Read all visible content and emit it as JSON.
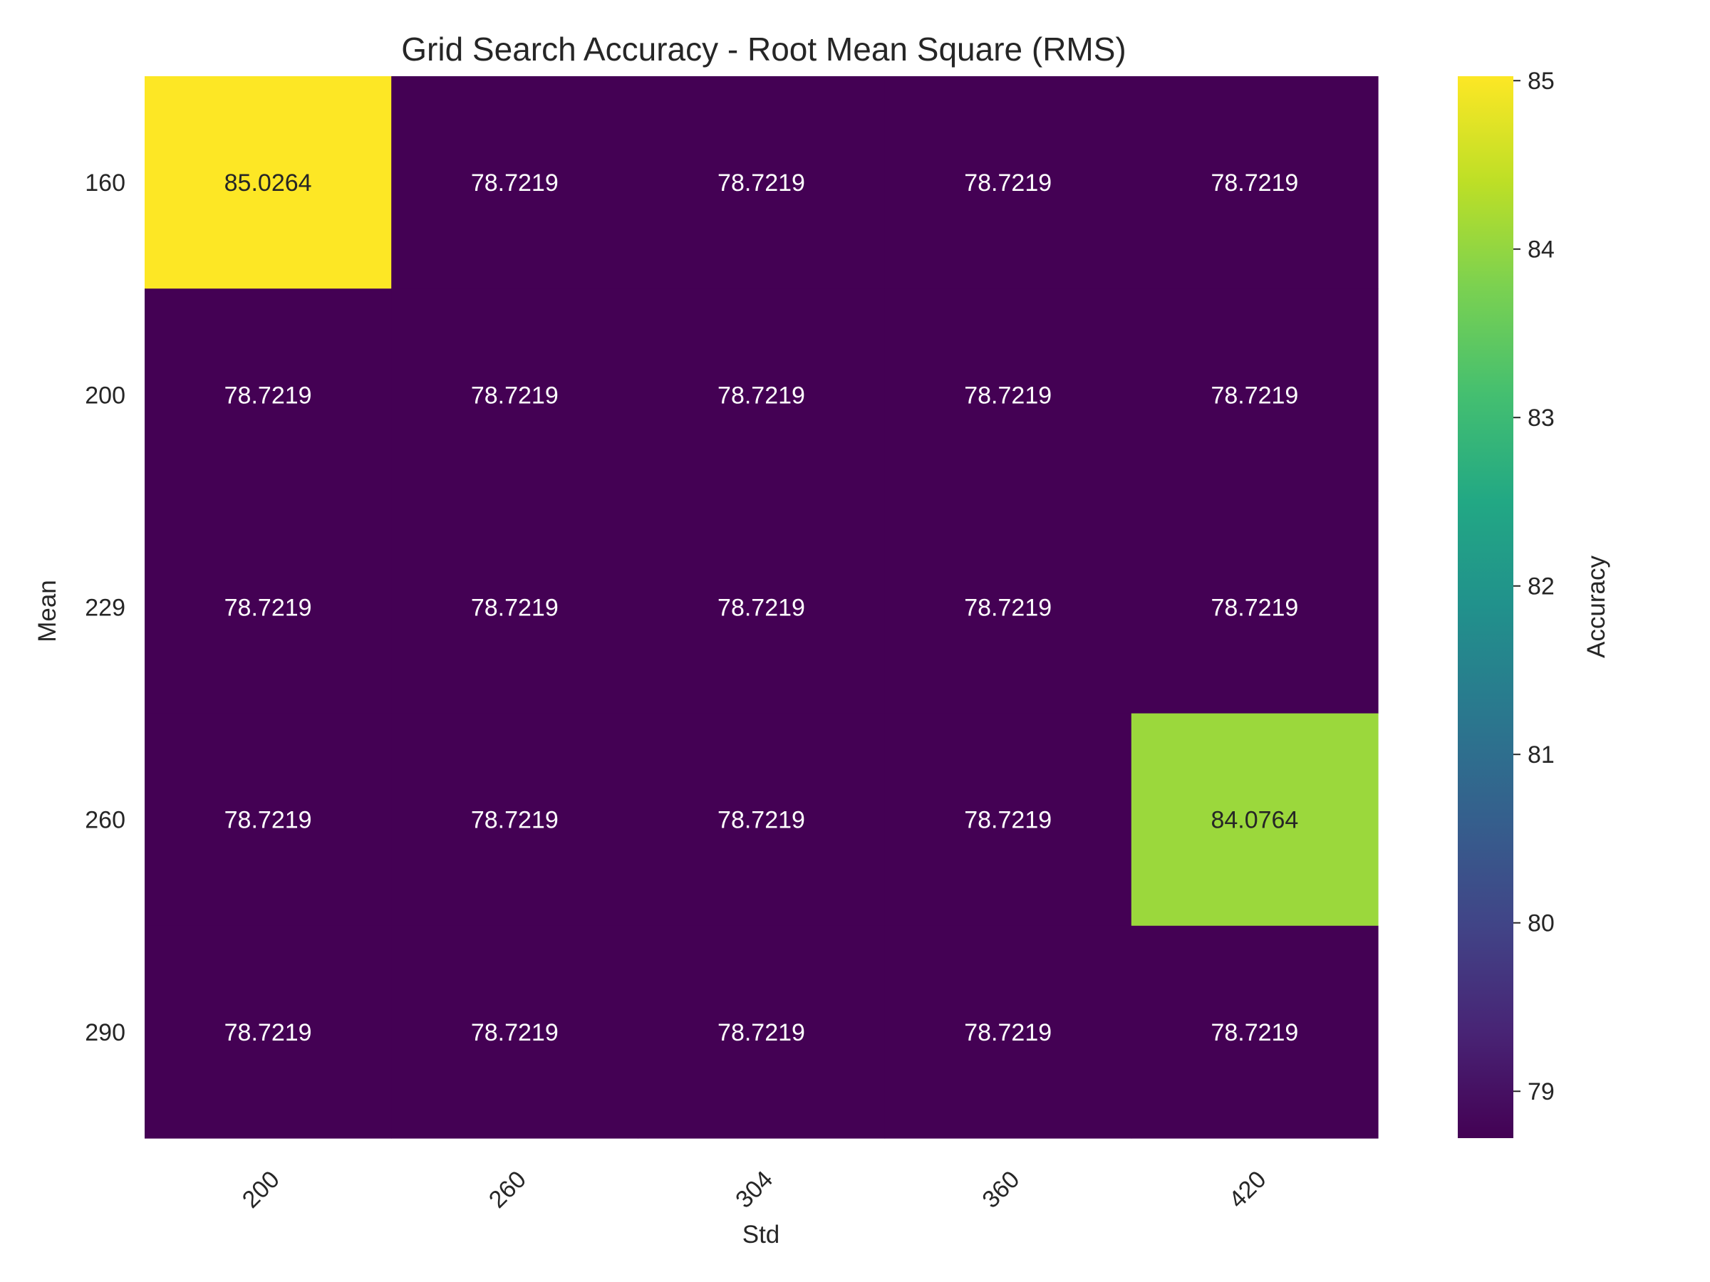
{
  "chart_data": {
    "type": "heatmap",
    "title": "Grid Search Accuracy - Root Mean Square (RMS)",
    "xlabel": "Std",
    "ylabel": "Mean",
    "x_categories": [
      "200",
      "260",
      "304",
      "360",
      "420"
    ],
    "y_categories": [
      "160",
      "200",
      "229",
      "260",
      "290"
    ],
    "values": [
      [
        85.0264,
        78.7219,
        78.7219,
        78.7219,
        78.7219
      ],
      [
        78.7219,
        78.7219,
        78.7219,
        78.7219,
        78.7219
      ],
      [
        78.7219,
        78.7219,
        78.7219,
        78.7219,
        78.7219
      ],
      [
        78.7219,
        78.7219,
        78.7219,
        78.7219,
        84.0764
      ],
      [
        78.7219,
        78.7219,
        78.7219,
        78.7219,
        78.7219
      ]
    ],
    "value_format_decimals": 4,
    "colormap": "viridis",
    "colorbar": {
      "label": "Accuracy",
      "range": [
        78.7219,
        85.0264
      ],
      "ticks": [
        79,
        80,
        81,
        82,
        83,
        84,
        85
      ]
    },
    "grid": false,
    "legend": "colorbar-right"
  }
}
